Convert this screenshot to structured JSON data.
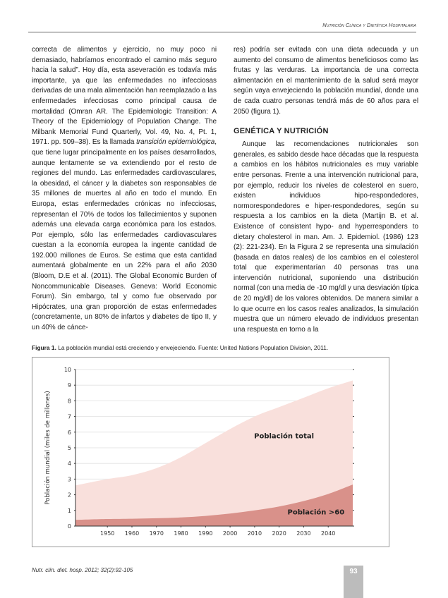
{
  "header": {
    "running_title": "Nutrición Clínica y Dietética Hospitalaria"
  },
  "left_column": {
    "p1_a": "correcta de alimentos y ejercicio, no muy poco ni demasiado, habríamos encontrado el camino más seguro hacia la salud”. Hoy día, esta aseveración es todavía más importante, ya que las enfermedades no infecciosas derivadas de una mala alimentación han reemplazado a las enfermedades infecciosas como principal causa de mortalidad (Omran AR. The Epidemiologic Transition: A Theory of the Epidemiology of Population Change. The Milbank Memorial Fund Quarterly, Vol. 49, No. 4, Pt. 1, 1971. pp. 509–38). Es la llamada ",
    "p1_italic": "transición epidemiológica",
    "p1_b": ", que tiene lugar principalmente en los países desarrollados, aunque lentamente se va extendiendo por el resto de regiones del mundo. Las enfermedades cardiovasculares, la obesidad, el cáncer y la diabetes son responsables de 35 millones de muertes al año en todo el mundo. En Europa, estas enfermedades crónicas no infecciosas, representan el 70% de todos los fallecimientos y suponen además una elevada carga económica para los estados. Por ejemplo, sólo las enfermedades cardiovasculares cuestan a la economía europea la ingente cantidad de 192.000 millones de Euros. Se estima que esta cantidad aumentará globalmente en un 22% para el año 2030 (Bloom, D.E et al. (2011). The Global Economic Burden of Noncommunicable Diseases. Geneva: World Economic Forum). Sin embargo, tal y como fue observado por Hipócrates, una gran proporción de estas enfermedades (concretamente, un 80% de infartos y diabetes de tipo II, y un 40% de cánce-"
  },
  "right_column": {
    "p1": "res) podría ser evitada con una dieta adecuada y un aumento del consumo de alimentos beneficiosos como las frutas y las verduras. La importancia de una correcta alimentación en el mantenimiento de la salud será mayor según vaya envejeciendo la población mundial, donde una de cada cuatro personas tendrá más de 60 años para el 2050 (figura 1).",
    "heading": "GENÉTICA Y NUTRICIÓN",
    "p2": "Aunque las recomendaciones nutricionales son generales, es sabido desde hace décadas que la respuesta a cambios en los hábitos nutricionales es muy variable entre personas. Frente a una intervención nutricional para, por ejemplo, reducir los niveles de colesterol en suero, existen individuos hipo-respondedores, normorespondedores e hiper-respondedores, según su respuesta a los cambios en la dieta (Martijn B. et al. Existence of consistent hypo- and hyperresponders to dietary cholesterol in man. Am. J. Epidemiol. (1986) 123 (2): 221-234). En la Figura 2 se representa una simulación (basada en datos reales) de los cambios en el colesterol total que experimentarían 40 personas tras una intervención nutricional, suponiendo una distribución normal (con una media de -10 mg/dl y una desviación típica de 20 mg/dl) de los valores obtenidos. De manera similar a lo que ocurre en los casos reales analizados, la simulación muestra que un número elevado de individuos presentan una respuesta en torno a la"
  },
  "figure": {
    "label": "Figura 1.",
    "caption": " La población mundial está creciendo y envejeciendo. Fuente: United Nations Population Division, 2011."
  },
  "chart_data": {
    "type": "area",
    "title": "",
    "xlabel": "",
    "ylabel": "Población mundial (miles de millones)",
    "xlim": [
      1937,
      2050
    ],
    "ylim": [
      0,
      10
    ],
    "x_ticks": [
      "1950",
      "1960",
      "1970",
      "1980",
      "1990",
      "2000",
      "2010",
      "2020",
      "2030",
      "2040"
    ],
    "y_ticks": [
      "0",
      "1",
      "2",
      "3",
      "4",
      "5",
      "6",
      "7",
      "8",
      "9",
      "10"
    ],
    "grid": "horizontal",
    "x": [
      1937,
      1950,
      1960,
      1970,
      1980,
      1990,
      2000,
      2010,
      2020,
      2030,
      2040,
      2050
    ],
    "series": [
      {
        "name": "Población total",
        "color": "#f9e0dc",
        "values": [
          2.6,
          3.0,
          3.25,
          3.7,
          4.4,
          5.3,
          6.2,
          7.0,
          7.6,
          8.2,
          8.8,
          9.3
        ]
      },
      {
        "name": "Población >60",
        "color": "#d9918a",
        "values": [
          0.4,
          0.45,
          0.47,
          0.5,
          0.55,
          0.65,
          0.8,
          1.0,
          1.25,
          1.6,
          2.05,
          2.65
        ]
      }
    ]
  },
  "footer": {
    "citation": "Nutr. clín. diet. hosp. 2012; 32(2):92-105",
    "page_number": "93"
  }
}
